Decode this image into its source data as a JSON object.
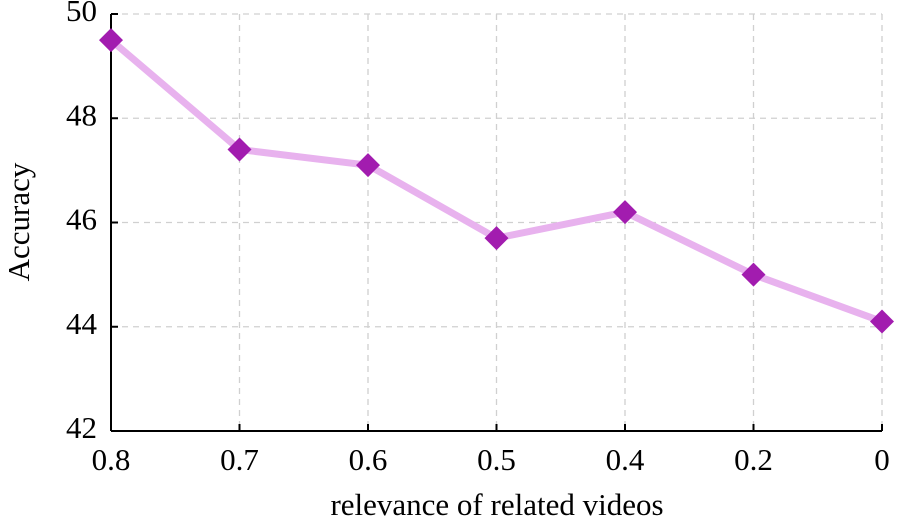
{
  "chart_data": {
    "type": "line",
    "x_label": "relevance of related videos",
    "y_label": "Accuracy",
    "categories": [
      "0.8",
      "0.7",
      "0.6",
      "0.5",
      "0.4",
      "0.2",
      "0"
    ],
    "series": [
      {
        "color": "#e8b2ee",
        "marker_color": "#a21caf",
        "values": [
          49.5,
          47.4,
          47.1,
          45.7,
          46.2,
          45.0,
          44.1
        ]
      }
    ],
    "ylim": [
      42,
      50
    ],
    "yticks": [
      42,
      44,
      46,
      48,
      50
    ],
    "grid": true
  }
}
